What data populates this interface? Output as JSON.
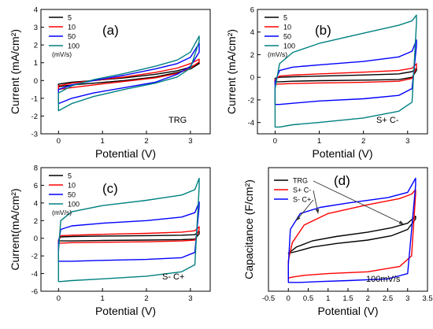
{
  "chart_data": [
    {
      "type": "line",
      "panel_label": "(a)",
      "annotation": "TRG",
      "xlabel": "Potential (V)",
      "ylabel": "Current (mA/cm²)",
      "xlim": [
        -0.4,
        3.45
      ],
      "ylim": [
        -3,
        4
      ],
      "xticks": [
        0,
        1,
        2,
        3
      ],
      "yticks": [
        -3,
        -2,
        -1,
        0,
        1,
        2,
        3,
        4
      ],
      "legend_unit": "(mV/s)",
      "legend_position": "top-left",
      "series": [
        {
          "name": "5",
          "color": "#000000",
          "x": [
            0.0,
            0.3,
            0.8,
            1.5,
            2.2,
            2.7,
            3.0,
            3.2
          ],
          "upper": [
            -0.2,
            -0.1,
            0.0,
            0.15,
            0.35,
            0.55,
            0.75,
            1.0
          ],
          "lower": [
            -0.35,
            -0.25,
            -0.15,
            0.0,
            0.2,
            0.45,
            0.65,
            0.95
          ]
        },
        {
          "name": "10",
          "color": "#ff0000",
          "x": [
            0.0,
            0.3,
            0.8,
            1.5,
            2.2,
            2.7,
            3.0,
            3.2
          ],
          "upper": [
            -0.3,
            -0.15,
            0.0,
            0.2,
            0.45,
            0.7,
            0.95,
            1.2
          ],
          "lower": [
            -0.5,
            -0.4,
            -0.25,
            -0.05,
            0.15,
            0.4,
            0.7,
            1.05
          ]
        },
        {
          "name": "50",
          "color": "#0000ff",
          "x": [
            0.0,
            0.3,
            0.8,
            1.5,
            2.2,
            2.7,
            3.0,
            3.2
          ],
          "upper": [
            -0.5,
            -0.25,
            0.0,
            0.3,
            0.65,
            0.95,
            1.3,
            2.1
          ],
          "lower": [
            -1.3,
            -1.0,
            -0.7,
            -0.4,
            -0.1,
            0.35,
            0.8,
            1.6
          ]
        },
        {
          "name": "100",
          "color": "#008080",
          "x": [
            0.0,
            0.3,
            0.8,
            1.5,
            2.2,
            2.7,
            3.0,
            3.2
          ],
          "upper": [
            -0.7,
            -0.3,
            0.05,
            0.4,
            0.8,
            1.15,
            1.6,
            2.5
          ],
          "lower": [
            -1.7,
            -1.3,
            -0.9,
            -0.5,
            -0.15,
            0.2,
            0.7,
            2.2
          ]
        }
      ]
    },
    {
      "type": "line",
      "panel_label": "(b)",
      "annotation": "S+ C-",
      "xlabel": "Potential (V)",
      "ylabel": "Current (mA/cm²)",
      "xlim": [
        -0.4,
        3.45
      ],
      "ylim": [
        -5,
        6
      ],
      "xticks": [
        0,
        1,
        2,
        3
      ],
      "yticks": [
        -4,
        -2,
        0,
        2,
        4,
        6
      ],
      "legend_unit": "(mV/s)",
      "legend_position": "top-left",
      "series": [
        {
          "name": "5",
          "color": "#000000",
          "x": [
            0.0,
            0.1,
            0.4,
            1.0,
            2.0,
            2.8,
            3.1,
            3.2
          ],
          "upper": [
            -0.1,
            0.0,
            0.05,
            0.1,
            0.2,
            0.3,
            0.5,
            0.8
          ],
          "lower": [
            -0.4,
            -0.4,
            -0.35,
            -0.3,
            -0.25,
            -0.2,
            0.0,
            0.6
          ]
        },
        {
          "name": "10",
          "color": "#ff0000",
          "x": [
            0.0,
            0.1,
            0.4,
            1.0,
            2.0,
            2.8,
            3.1,
            3.2
          ],
          "upper": [
            -0.2,
            0.1,
            0.2,
            0.3,
            0.45,
            0.6,
            0.8,
            1.2
          ],
          "lower": [
            -0.6,
            -0.6,
            -0.55,
            -0.5,
            -0.45,
            -0.35,
            -0.1,
            0.9
          ]
        },
        {
          "name": "50",
          "color": "#0000ff",
          "x": [
            0.0,
            0.1,
            0.4,
            1.0,
            2.0,
            2.8,
            3.1,
            3.2
          ],
          "upper": [
            -0.4,
            0.6,
            0.9,
            1.1,
            1.4,
            1.8,
            2.3,
            3.3
          ],
          "lower": [
            -2.4,
            -2.4,
            -2.3,
            -2.1,
            -1.9,
            -1.6,
            -1.0,
            2.8
          ]
        },
        {
          "name": "100",
          "color": "#008080",
          "x": [
            0.0,
            0.1,
            0.4,
            1.0,
            2.0,
            2.8,
            3.1,
            3.2
          ],
          "upper": [
            -1.0,
            1.2,
            2.2,
            3.0,
            3.9,
            4.6,
            5.0,
            5.5
          ],
          "lower": [
            -4.4,
            -4.4,
            -4.2,
            -4.0,
            -3.6,
            -3.0,
            -2.2,
            4.8
          ]
        }
      ]
    },
    {
      "type": "line",
      "panel_label": "(c)",
      "annotation": "S- C+",
      "xlabel": "Potential (V)",
      "ylabel": "Current(mA/cm²)",
      "xlim": [
        -0.4,
        3.45
      ],
      "ylim": [
        -6,
        8
      ],
      "xticks": [
        0,
        1,
        2,
        3
      ],
      "yticks": [
        -6,
        -4,
        -2,
        0,
        2,
        4,
        6,
        8
      ],
      "legend_unit": "(mV/s)",
      "legend_position": "top-left",
      "series": [
        {
          "name": "5",
          "color": "#000000",
          "x": [
            0.0,
            0.05,
            0.3,
            1.0,
            2.0,
            2.8,
            3.1,
            3.2
          ],
          "upper": [
            -0.2,
            0.15,
            0.2,
            0.25,
            0.3,
            0.35,
            0.4,
            0.8
          ],
          "lower": [
            -0.3,
            -0.3,
            -0.3,
            -0.25,
            -0.2,
            -0.15,
            -0.1,
            0.5
          ]
        },
        {
          "name": "10",
          "color": "#ff0000",
          "x": [
            0.0,
            0.05,
            0.3,
            1.0,
            2.0,
            2.8,
            3.1,
            3.2
          ],
          "upper": [
            -0.3,
            0.3,
            0.35,
            0.45,
            0.55,
            0.7,
            0.85,
            1.3
          ],
          "lower": [
            -0.55,
            -0.55,
            -0.5,
            -0.45,
            -0.4,
            -0.3,
            -0.2,
            1.0
          ]
        },
        {
          "name": "50",
          "color": "#0000ff",
          "x": [
            0.0,
            0.05,
            0.3,
            1.0,
            2.0,
            2.8,
            3.1,
            3.2
          ],
          "upper": [
            -0.5,
            1.0,
            1.4,
            1.7,
            2.0,
            2.4,
            2.9,
            4.1
          ],
          "lower": [
            -2.6,
            -2.6,
            -2.6,
            -2.5,
            -2.4,
            -2.2,
            -1.6,
            3.6
          ]
        },
        {
          "name": "100",
          "color": "#008080",
          "x": [
            0.0,
            0.05,
            0.3,
            1.0,
            2.0,
            2.8,
            3.1,
            3.2
          ],
          "upper": [
            -1.5,
            2.0,
            3.0,
            3.7,
            4.3,
            4.9,
            5.5,
            6.8
          ],
          "lower": [
            -4.9,
            -4.9,
            -4.8,
            -4.6,
            -4.3,
            -3.8,
            -3.0,
            5.8
          ]
        }
      ]
    },
    {
      "type": "line",
      "panel_label": "(d)",
      "annotation": "100mV/s",
      "xlabel": "Potential (V)",
      "ylabel": "Capacitance (F/cm²)",
      "xlim": [
        -0.5,
        3.5
      ],
      "ylim": [
        -0.6,
        0.8
      ],
      "xticks": [
        -0.5,
        0.0,
        0.5,
        1.0,
        1.5,
        2.0,
        2.5,
        3.0,
        3.5
      ],
      "yticks": [],
      "legend_position": "top-left",
      "series": [
        {
          "name": "TRG",
          "color": "#000000",
          "x": [
            0.0,
            0.2,
            0.6,
            1.2,
            2.0,
            2.6,
            3.0,
            3.2
          ],
          "upper": [
            -0.17,
            -0.1,
            -0.03,
            0.02,
            0.07,
            0.12,
            0.17,
            0.25
          ],
          "lower": [
            -0.17,
            -0.15,
            -0.1,
            -0.06,
            -0.02,
            0.03,
            0.1,
            0.22
          ]
        },
        {
          "name": "S+ C-",
          "color": "#ff0000",
          "x": [
            0.0,
            0.1,
            0.4,
            1.0,
            2.0,
            2.8,
            3.1,
            3.2
          ],
          "upper": [
            -0.25,
            -0.05,
            0.15,
            0.28,
            0.38,
            0.45,
            0.5,
            0.55
          ],
          "lower": [
            -0.45,
            -0.44,
            -0.42,
            -0.4,
            -0.38,
            -0.32,
            -0.2,
            0.5
          ]
        },
        {
          "name": "S- C+",
          "color": "#0000ff",
          "x": [
            0.0,
            0.05,
            0.3,
            0.8,
            1.5,
            2.5,
            3.0,
            3.2
          ],
          "upper": [
            -0.3,
            0.1,
            0.28,
            0.35,
            0.4,
            0.46,
            0.52,
            0.68
          ],
          "lower": [
            -0.5,
            -0.5,
            -0.5,
            -0.49,
            -0.48,
            -0.46,
            -0.4,
            0.6
          ]
        }
      ]
    }
  ]
}
